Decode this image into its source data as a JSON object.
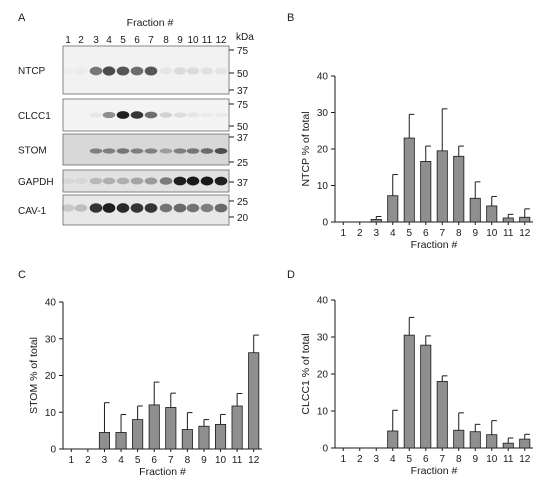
{
  "figure": {
    "panel_labels": [
      "A",
      "B",
      "C",
      "D"
    ],
    "blot": {
      "title": "Fraction #",
      "lanes": [
        "1",
        "2",
        "3",
        "4",
        "5",
        "6",
        "7",
        "8",
        "9",
        "10",
        "11",
        "12"
      ],
      "kda_label": "kDa",
      "rows": [
        {
          "label": "NTCP",
          "markers": [
            "75",
            "50",
            "37"
          ],
          "background": "#f2f2f2",
          "intensity": [
            0.02,
            0.03,
            0.55,
            0.75,
            0.7,
            0.6,
            0.7,
            0.05,
            0.1,
            0.1,
            0.08,
            0.06
          ]
        },
        {
          "label": "CLCC1",
          "markers": [
            "75",
            "50"
          ],
          "background": "#f4f4f4",
          "intensity": [
            0.0,
            0.0,
            0.05,
            0.45,
            0.95,
            0.85,
            0.6,
            0.15,
            0.1,
            0.06,
            0.04,
            0.04
          ]
        },
        {
          "label": "STOM",
          "markers": [
            "37",
            "25"
          ],
          "background": "#d8d8d8",
          "intensity": [
            0.0,
            0.0,
            0.45,
            0.45,
            0.5,
            0.45,
            0.45,
            0.3,
            0.45,
            0.5,
            0.55,
            0.7
          ]
        },
        {
          "label": "GAPDH",
          "markers": [
            "37"
          ],
          "background": "#e2e2e2",
          "intensity": [
            0.05,
            0.05,
            0.2,
            0.25,
            0.25,
            0.3,
            0.35,
            0.5,
            0.95,
            0.98,
            0.98,
            0.95
          ]
        },
        {
          "label": "CAV-1",
          "markers": [
            "25",
            "20"
          ],
          "background": "#e8e8e8",
          "intensity": [
            0.15,
            0.2,
            0.85,
            0.95,
            0.9,
            0.85,
            0.85,
            0.55,
            0.6,
            0.55,
            0.5,
            0.6
          ]
        }
      ]
    },
    "colors": {
      "bar": "#8f8f8f",
      "axis": "#1a1a1a",
      "band": "#141414"
    }
  },
  "chart_data": [
    {
      "panel": "B",
      "type": "bar",
      "categories": [
        "1",
        "2",
        "3",
        "4",
        "5",
        "6",
        "7",
        "8",
        "9",
        "10",
        "11",
        "12"
      ],
      "values": [
        0,
        0,
        0.7,
        7.2,
        23,
        16.6,
        19.5,
        18,
        6.5,
        4.4,
        1.1,
        1.3
      ],
      "errors": [
        0,
        0,
        0.8,
        5.8,
        6.5,
        4.2,
        11.5,
        2.8,
        4.5,
        2.6,
        1.0,
        2.3
      ],
      "xlabel": "Fraction #",
      "ylabel": "NTCP % of total",
      "ylim": [
        0,
        40
      ],
      "yticks": [
        0,
        10,
        20,
        30,
        40
      ]
    },
    {
      "panel": "C",
      "type": "bar",
      "categories": [
        "1",
        "2",
        "3",
        "4",
        "5",
        "6",
        "7",
        "8",
        "9",
        "10",
        "11",
        "12"
      ],
      "values": [
        0,
        0,
        4.5,
        4.5,
        8,
        12,
        11.3,
        5.3,
        6.2,
        6.7,
        11.7,
        26.2
      ],
      "errors": [
        0,
        0,
        8.1,
        4.9,
        3.7,
        6.2,
        3.9,
        4.6,
        1.8,
        2.7,
        3.4,
        4.8
      ],
      "xlabel": "Fraction #",
      "ylabel": "STOM % of total",
      "ylim": [
        0,
        40
      ],
      "yticks": [
        0,
        10,
        20,
        30,
        40
      ]
    },
    {
      "panel": "D",
      "type": "bar",
      "categories": [
        "1",
        "2",
        "3",
        "4",
        "5",
        "6",
        "7",
        "8",
        "9",
        "10",
        "11",
        "12"
      ],
      "values": [
        0,
        0,
        0,
        4.6,
        30.5,
        27.8,
        18,
        4.8,
        4.4,
        3.6,
        1.3,
        2.4
      ],
      "errors": [
        0,
        0,
        0,
        5.6,
        4.8,
        2.5,
        1.5,
        4.7,
        2.0,
        3.8,
        1.4,
        1.3
      ],
      "xlabel": "Fraction #",
      "ylabel": "CLCC1 % of total",
      "ylim": [
        0,
        40
      ],
      "yticks": [
        0,
        10,
        20,
        30,
        40
      ]
    }
  ]
}
